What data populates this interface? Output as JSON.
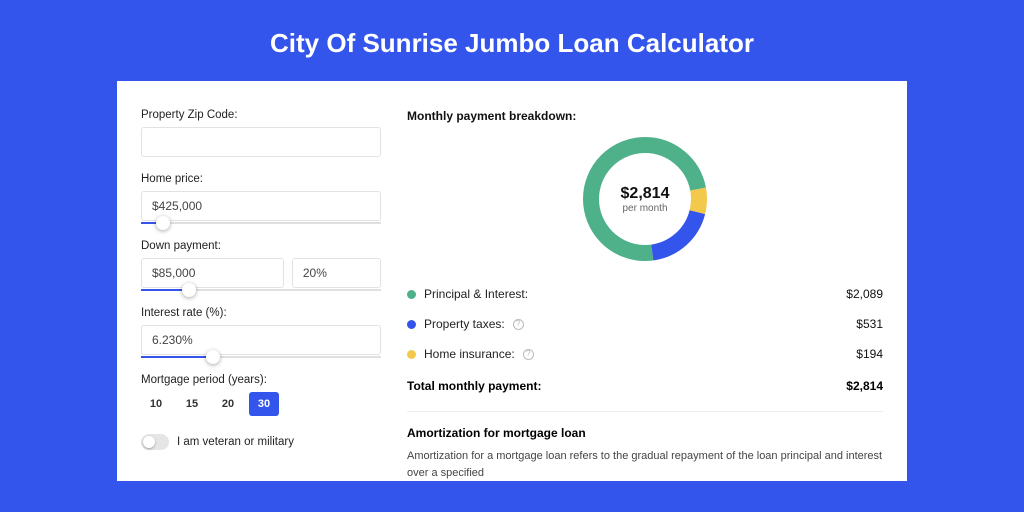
{
  "colors": {
    "page_bg": "#3455eb",
    "accent": "#3455eb",
    "principal": "#4fb18a",
    "taxes": "#3455eb",
    "insurance": "#f3c94b",
    "donut_track": "#f1f1f1",
    "border": "#e2e2e2"
  },
  "header": {
    "title": "City Of Sunrise Jumbo Loan Calculator",
    "title_fontsize": 26
  },
  "form": {
    "zip": {
      "label": "Property Zip Code:",
      "value": ""
    },
    "home_price": {
      "label": "Home price:",
      "value": "$425,000",
      "slider_pct": 9
    },
    "down_payment": {
      "label": "Down payment:",
      "value": "$85,000",
      "pct": "20%",
      "slider_pct": 20
    },
    "interest": {
      "label": "Interest rate (%):",
      "value": "6.230%",
      "slider_pct": 30
    },
    "period": {
      "label": "Mortgage period (years):",
      "options": [
        "10",
        "15",
        "20",
        "30"
      ],
      "selected": "30"
    },
    "veteran": {
      "label": "I am veteran or military",
      "checked": false
    }
  },
  "breakdown": {
    "title": "Monthly payment breakdown:",
    "center_amount": "$2,814",
    "center_sub": "per month",
    "donut": {
      "size": 124,
      "thickness": 16,
      "slices": [
        {
          "key": "principal",
          "label": "Principal & Interest:",
          "value": "$2,089",
          "pct": 74.2,
          "color": "#4fb18a"
        },
        {
          "key": "taxes",
          "label": "Property taxes:",
          "value": "$531",
          "pct": 18.9,
          "color": "#3455eb",
          "info": true
        },
        {
          "key": "insurance",
          "label": "Home insurance:",
          "value": "$194",
          "pct": 6.9,
          "color": "#f3c94b",
          "info": true
        }
      ]
    },
    "total_label": "Total monthly payment:",
    "total_value": "$2,814"
  },
  "amortization": {
    "title": "Amortization for mortgage loan",
    "text": "Amortization for a mortgage loan refers to the gradual repayment of the loan principal and interest over a specified"
  }
}
